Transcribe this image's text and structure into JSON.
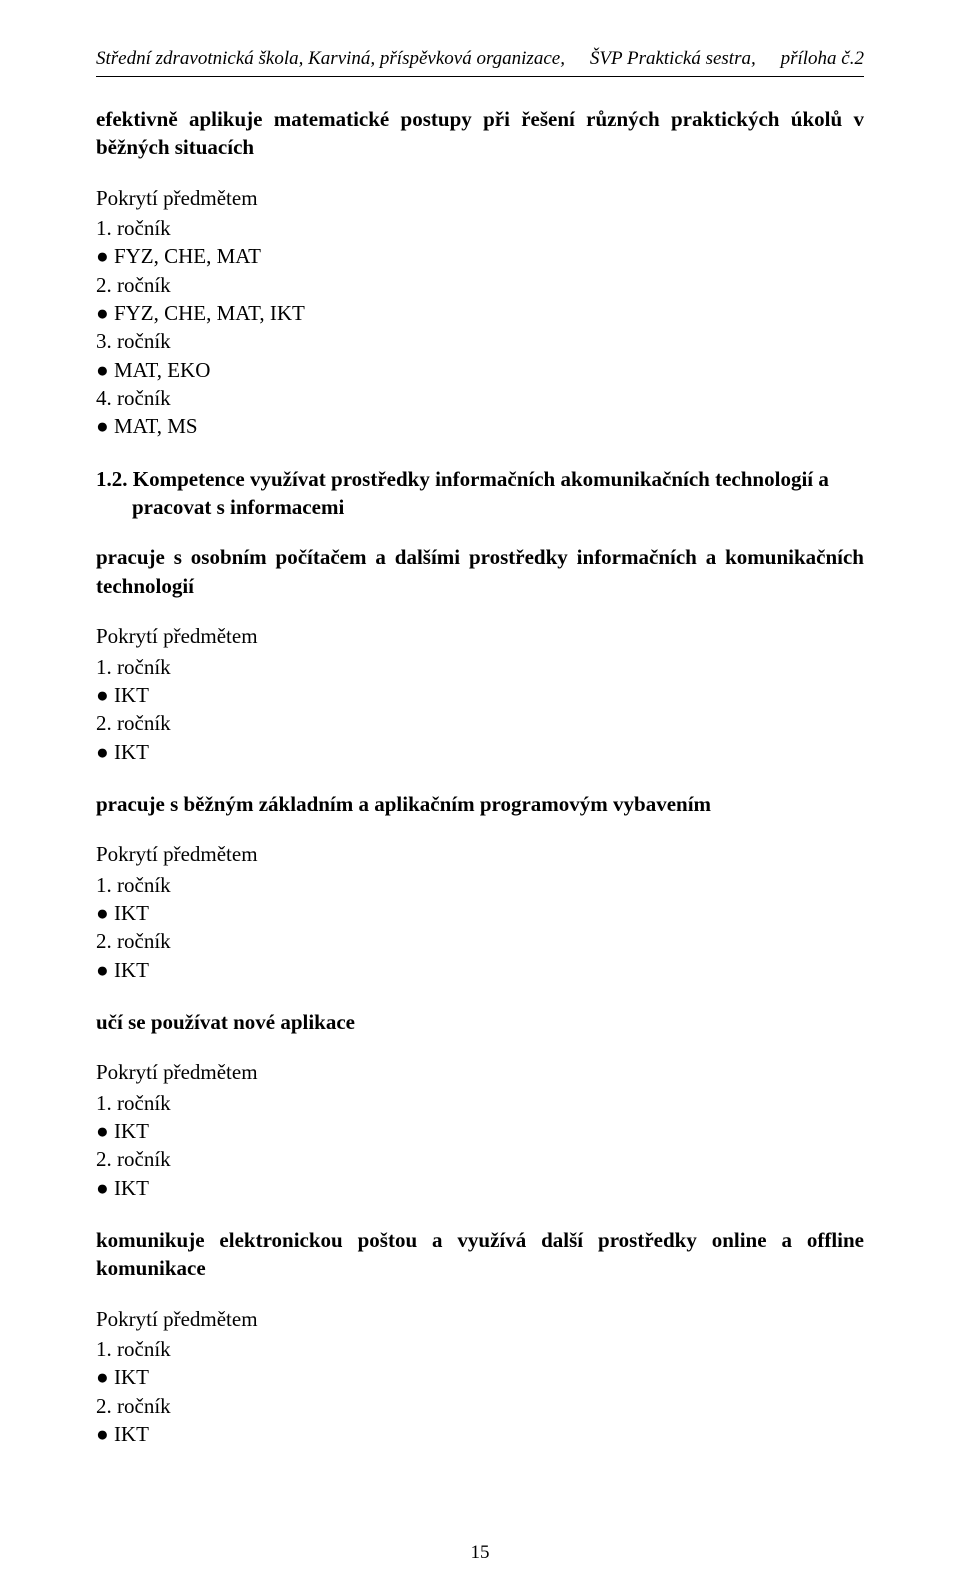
{
  "header": {
    "left": "Střední zdravotnická škola, Karviná, příspěvková organizace,",
    "center": "ŠVP Praktická sestra,",
    "right": "příloha č.2"
  },
  "sections": {
    "s1": {
      "title": "efektivně aplikuje matematické postupy při řešení různých praktických úkolů v běžných situacích",
      "covered_label": "Pokrytí předmětem",
      "grades": [
        {
          "grade": "1. ročník",
          "subjects": "FYZ, CHE, MAT"
        },
        {
          "grade": "2. ročník",
          "subjects": "FYZ, CHE, MAT, IKT"
        },
        {
          "grade": "3. ročník",
          "subjects": "MAT, EKO"
        },
        {
          "grade": "4. ročník",
          "subjects": "MAT, MS"
        }
      ]
    },
    "competence": {
      "number": "1.2.",
      "title": "Kompetence využívat prostředky informačních akomunikačních technologií a pracovat s informacemi"
    },
    "s2": {
      "title": "pracuje s osobním počítačem a dalšími prostředky informačních a komunikačních technologií",
      "covered_label": "Pokrytí předmětem",
      "grades": [
        {
          "grade": "1. ročník",
          "subjects": "IKT"
        },
        {
          "grade": "2. ročník",
          "subjects": "IKT"
        }
      ]
    },
    "s3": {
      "title": "pracuje s běžným základním a aplikačním programovým vybavením",
      "covered_label": "Pokrytí předmětem",
      "grades": [
        {
          "grade": "1. ročník",
          "subjects": "IKT"
        },
        {
          "grade": "2. ročník",
          "subjects": "IKT"
        }
      ]
    },
    "s4": {
      "title": "učí se používat nové aplikace",
      "covered_label": "Pokrytí předmětem",
      "grades": [
        {
          "grade": "1. ročník",
          "subjects": "IKT"
        },
        {
          "grade": "2. ročník",
          "subjects": "IKT"
        }
      ]
    },
    "s5": {
      "title": "komunikuje elektronickou poštou a využívá další prostředky online a offline komunikace",
      "covered_label": "Pokrytí předmětem",
      "grades": [
        {
          "grade": "1. ročník",
          "subjects": "IKT"
        },
        {
          "grade": "2. ročník",
          "subjects": "IKT"
        }
      ]
    }
  },
  "page_number": "15"
}
